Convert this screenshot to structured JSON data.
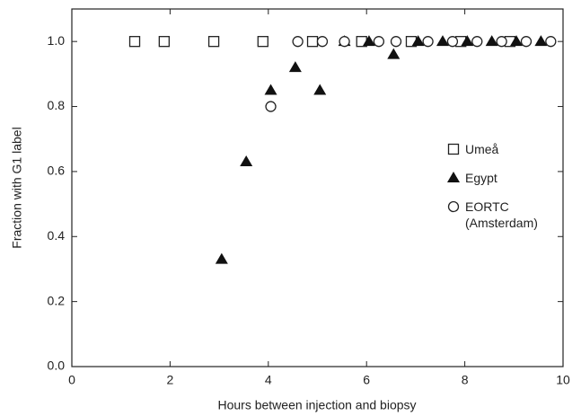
{
  "chart_data": {
    "type": "scatter",
    "x_label": "Hours between injection and biopsy",
    "y_label": "Fraction with G1 label",
    "xlim": [
      0,
      10
    ],
    "ylim": [
      0,
      1.1
    ],
    "xticks": [
      0,
      2,
      4,
      6,
      8,
      10
    ],
    "yticks": [
      {
        "value": 0,
        "label": "0.0"
      },
      0.2,
      0.4,
      0.6,
      0.8,
      {
        "value": 1,
        "label": "1.0"
      }
    ],
    "legend": "right",
    "series": [
      {
        "name": "Umeå",
        "marker": "square",
        "color": "#222222",
        "x": [
          1.28,
          1.88,
          2.89,
          3.89,
          4.9,
          5.9,
          6.91,
          7.92,
          8.92
        ],
        "values": [
          1.0,
          1.0,
          1.0,
          1.0,
          1.0,
          1.0,
          1.0,
          1.0,
          1.0
        ]
      },
      {
        "name": "Egypt",
        "marker": "triangle",
        "color": "#111111",
        "x": [
          3.05,
          3.55,
          4.05,
          4.55,
          5.05,
          5.55,
          6.05,
          6.55,
          7.05,
          7.55,
          8.05,
          8.55,
          9.05,
          9.55
        ],
        "values": [
          0.33,
          0.63,
          0.85,
          0.92,
          0.85,
          1.0,
          1.0,
          0.96,
          1.0,
          1.0,
          1.0,
          1.0,
          1.0,
          1.0
        ]
      },
      {
        "name": "EORTC (Amsterdam)",
        "marker": "circle",
        "color": "#222222",
        "x": [
          4.05,
          4.6,
          5.1,
          5.55,
          6.25,
          6.6,
          7.25,
          7.75,
          8.25,
          8.75,
          9.25,
          9.75
        ],
        "values": [
          0.8,
          1.0,
          1.0,
          1.0,
          1.0,
          1.0,
          1.0,
          1.0,
          1.0,
          1.0,
          1.0,
          1.0
        ]
      }
    ]
  }
}
